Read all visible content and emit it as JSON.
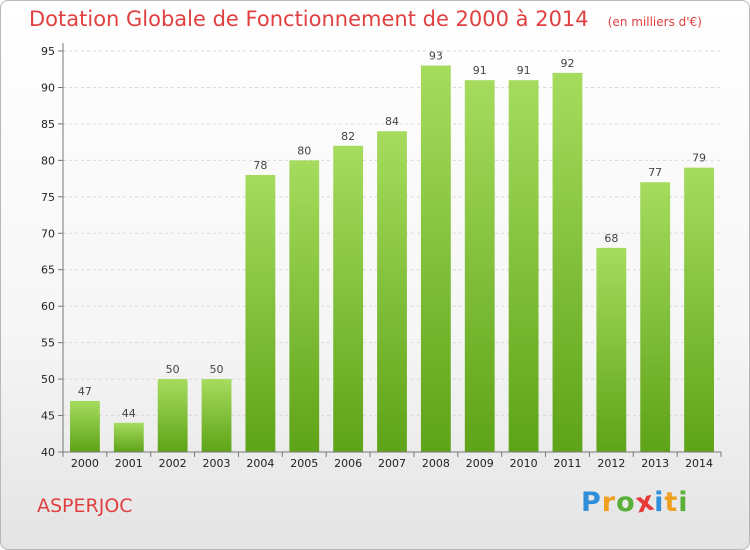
{
  "chart_data": {
    "type": "bar",
    "title": "Dotation Globale de Fonctionnement de 2000 à 2014",
    "subtitle": "(en milliers d'€)",
    "categories": [
      "2000",
      "2001",
      "2002",
      "2003",
      "2004",
      "2005",
      "2006",
      "2007",
      "2008",
      "2009",
      "2010",
      "2011",
      "2012",
      "2013",
      "2014"
    ],
    "values": [
      47,
      44,
      50,
      50,
      78,
      80,
      82,
      84,
      93,
      91,
      91,
      92,
      68,
      77,
      79
    ],
    "ylim": [
      40,
      95
    ],
    "yticks": [
      40,
      45,
      50,
      55,
      60,
      65,
      70,
      75,
      80,
      85,
      90,
      95
    ],
    "grid": true,
    "bar_color": "#7cc234",
    "bar_color_dark": "#5ea318",
    "bar_color_light": "#a6dc5e"
  },
  "commune": "ASPERJOC",
  "logo": {
    "letters": [
      "P",
      "r",
      "o",
      "x",
      "i",
      "t",
      "i"
    ],
    "colors": [
      "#2f8fd8",
      "#f0a020",
      "#58b038",
      "#e83838",
      "#2f8fd8",
      "#f0a020",
      "#58b038"
    ]
  },
  "colors": {
    "title": "#e04040"
  }
}
